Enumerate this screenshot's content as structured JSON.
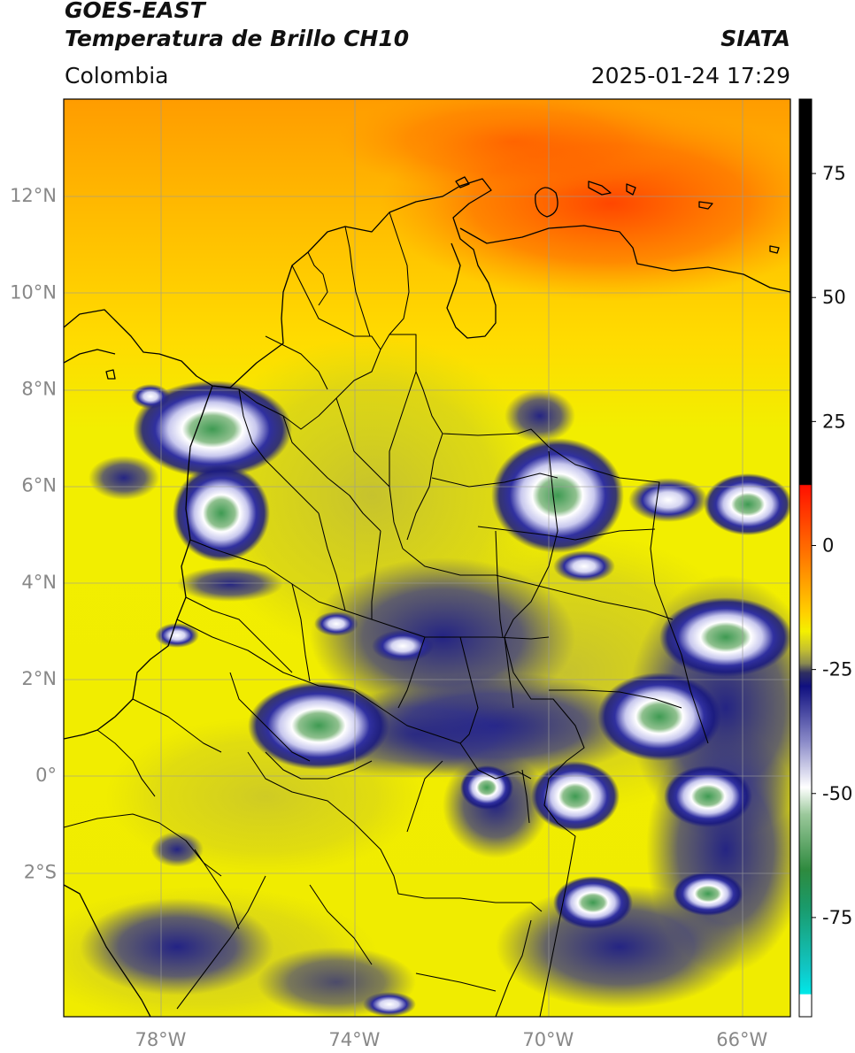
{
  "header": {
    "satellite": "GOES-EAST",
    "product": "Temperatura de Brillo CH10",
    "region": "Colombia",
    "source": "SIATA",
    "timestamp": "2025-01-24 17:29"
  },
  "map": {
    "lon_range": [
      -80,
      -65
    ],
    "lat_range": [
      -5,
      14
    ],
    "lat_ticks": [
      {
        "value": 12,
        "label": "12°N"
      },
      {
        "value": 10,
        "label": "10°N"
      },
      {
        "value": 8,
        "label": "8°N"
      },
      {
        "value": 6,
        "label": "6°N"
      },
      {
        "value": 4,
        "label": "4°N"
      },
      {
        "value": 2,
        "label": "2°N"
      },
      {
        "value": 0,
        "label": "0°"
      },
      {
        "value": -2,
        "label": "2°S"
      }
    ],
    "lon_ticks": [
      {
        "value": -78,
        "label": "78°W"
      },
      {
        "value": -74,
        "label": "74°W"
      },
      {
        "value": -70,
        "label": "70°W"
      },
      {
        "value": -66,
        "label": "66°W"
      }
    ],
    "gridlines": true,
    "colors": {
      "warm": "#ff4a00",
      "orange": "#ffaa00",
      "yellow": "#f2ee00",
      "olive": "#c9c52a",
      "cold_blue": "#1a1a8c",
      "lavender": "#c8c8ee",
      "white": "#ffffff",
      "green": "#3a9a50",
      "border": "#000000"
    }
  },
  "colorbar": {
    "ticks": [
      {
        "value": 75,
        "label": "75"
      },
      {
        "value": 50,
        "label": "50"
      },
      {
        "value": 25,
        "label": "25"
      },
      {
        "value": 0,
        "label": "0"
      },
      {
        "value": -25,
        "label": "-25"
      },
      {
        "value": -50,
        "label": "-50"
      },
      {
        "value": -75,
        "label": "-75"
      }
    ],
    "range": [
      -95,
      90
    ],
    "colors": {
      "black": "#000000",
      "red": "#ff1a00",
      "orange": "#ffa500",
      "yellow": "#f4f000",
      "olive": "#bdba3a",
      "navy": "#101080",
      "white": "#ffffff",
      "green": "#2e8a3e",
      "cyan": "#00e0e0"
    }
  }
}
